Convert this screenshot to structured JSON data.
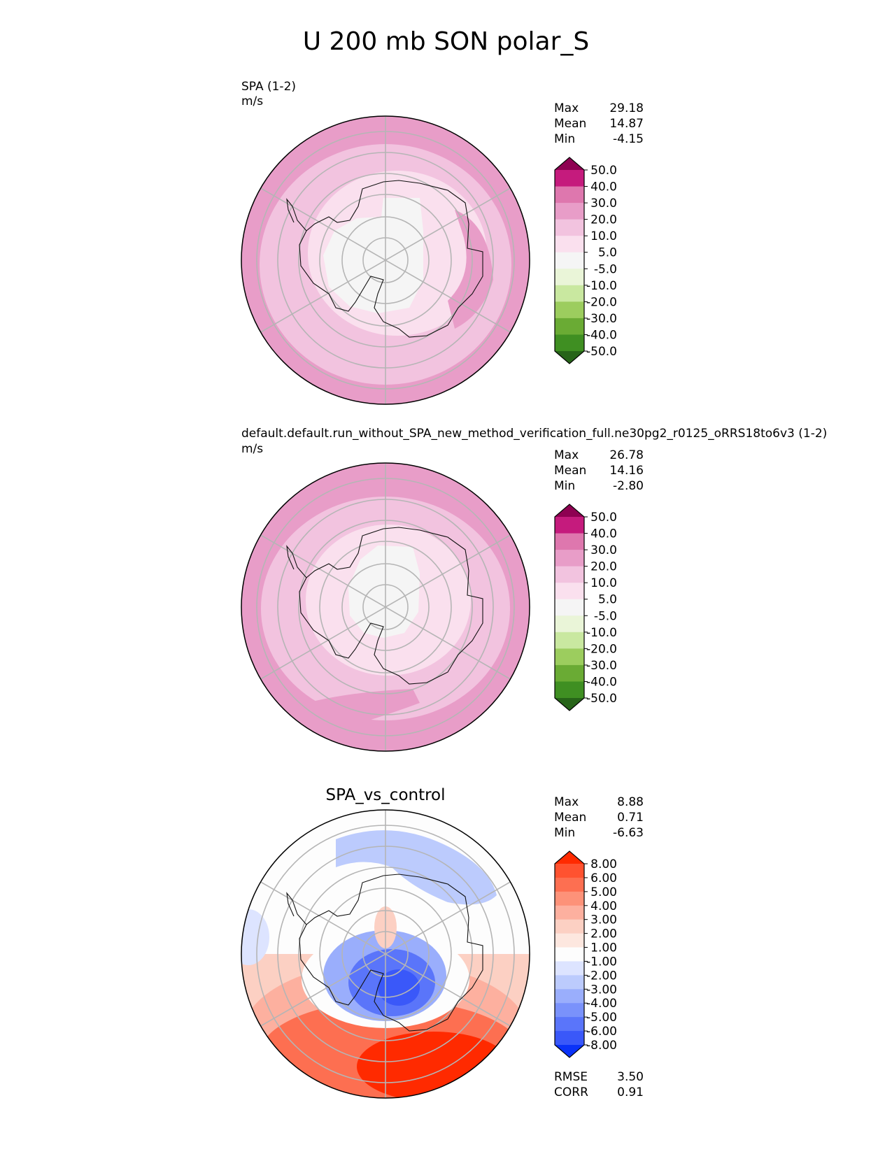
{
  "title": "U 200 mb SON polar_S",
  "panels": [
    {
      "id": "test",
      "title_left": "SPA (1-2)",
      "units": "m/s",
      "center_title": "",
      "stats": [
        {
          "label": "Max",
          "value": "29.18"
        },
        {
          "label": "Mean",
          "value": "14.87"
        },
        {
          "label": "Min",
          "value": "-4.15"
        }
      ],
      "colorbar": {
        "levels": [
          "50.0",
          "40.0",
          "30.0",
          "20.0",
          "10.0",
          "5.0",
          "-5.0",
          "-10.0",
          "-20.0",
          "-30.0",
          "-40.0",
          "-50.0"
        ],
        "colors": [
          "#8e0152",
          "#c51b7d",
          "#de77ae",
          "#e89dc8",
          "#f2c3df",
          "#fae0ee",
          "#f5f5f5",
          "#eaf5d8",
          "#c9e8a0",
          "#9ccd5e",
          "#6aab34",
          "#3f8f22",
          "#276419"
        ]
      }
    },
    {
      "id": "reference",
      "title_left": "default.default.run_without_SPA_new_method_verification_full.ne30pg2_r0125_oRRS18to6v3 (1-2)",
      "units": "m/s",
      "center_title": "",
      "stats": [
        {
          "label": "Max",
          "value": "26.78"
        },
        {
          "label": "Mean",
          "value": "14.16"
        },
        {
          "label": "Min",
          "value": "-2.80"
        }
      ],
      "colorbar": {
        "levels": [
          "50.0",
          "40.0",
          "30.0",
          "20.0",
          "10.0",
          "5.0",
          "-5.0",
          "-10.0",
          "-20.0",
          "-30.0",
          "-40.0",
          "-50.0"
        ],
        "colors": [
          "#8e0152",
          "#c51b7d",
          "#de77ae",
          "#e89dc8",
          "#f2c3df",
          "#fae0ee",
          "#f5f5f5",
          "#eaf5d8",
          "#c9e8a0",
          "#9ccd5e",
          "#6aab34",
          "#3f8f22",
          "#276419"
        ]
      }
    },
    {
      "id": "diff",
      "title_left": "",
      "units": "",
      "center_title": "SPA_vs_control",
      "stats": [
        {
          "label": "Max",
          "value": "8.88"
        },
        {
          "label": "Mean",
          "value": "0.71"
        },
        {
          "label": "Min",
          "value": "-6.63"
        }
      ],
      "extra_stats": [
        {
          "label": "RMSE",
          "value": "3.50"
        },
        {
          "label": "CORR",
          "value": "0.91"
        }
      ],
      "colorbar": {
        "levels": [
          "8.00",
          "6.00",
          "5.00",
          "4.00",
          "3.00",
          "2.00",
          "1.00",
          "-1.00",
          "-2.00",
          "-3.00",
          "-4.00",
          "-5.00",
          "-6.00",
          "-8.00"
        ],
        "colors": [
          "#ff2a00",
          "#ff5230",
          "#fd6f51",
          "#fd9279",
          "#fdb09f",
          "#fcd0c3",
          "#fde7df",
          "#fdfdfd",
          "#dde4ff",
          "#bccbfd",
          "#9aaefc",
          "#7a92fb",
          "#5a75fa",
          "#3a58f9",
          "#0a32f8"
        ]
      }
    }
  ],
  "chart_data": [
    {
      "type": "heatmap",
      "title": "SPA (1-2)",
      "units": "m/s",
      "projection": "south polar stereographic",
      "stats": {
        "max": 29.18,
        "mean": 14.87,
        "min": -4.15
      },
      "contour_levels": [
        -50,
        -40,
        -30,
        -20,
        -10,
        -5,
        5,
        10,
        20,
        30,
        40,
        50
      ],
      "colormap": "PiYG_r"
    },
    {
      "type": "heatmap",
      "title": "default.default.run_without_SPA_new_method_verification_full.ne30pg2_r0125_oRRS18to6v3 (1-2)",
      "units": "m/s",
      "projection": "south polar stereographic",
      "stats": {
        "max": 26.78,
        "mean": 14.16,
        "min": -2.8
      },
      "contour_levels": [
        -50,
        -40,
        -30,
        -20,
        -10,
        -5,
        5,
        10,
        20,
        30,
        40,
        50
      ],
      "colormap": "PiYG_r"
    },
    {
      "type": "heatmap",
      "title": "SPA_vs_control",
      "projection": "south polar stereographic",
      "stats": {
        "max": 8.88,
        "mean": 0.71,
        "min": -6.63,
        "rmse": 3.5,
        "corr": 0.91
      },
      "contour_levels": [
        -8,
        -6,
        -5,
        -4,
        -3,
        -2,
        -1,
        1,
        2,
        3,
        4,
        5,
        6,
        8
      ],
      "colormap": "bwr"
    }
  ]
}
